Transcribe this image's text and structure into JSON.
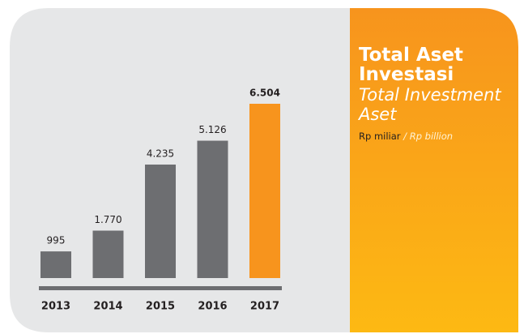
{
  "chart_data": {
    "type": "bar",
    "title": "Total Aset Investasi",
    "subtitle": "Total Investment Aset",
    "unit": "Rp miliar",
    "unit_separator": "/",
    "unit_en": "Rp billion",
    "categories": [
      "2013",
      "2014",
      "2015",
      "2016",
      "2017"
    ],
    "values": [
      995,
      1770,
      4235,
      5126,
      6504
    ],
    "value_labels": [
      "995",
      "1.770",
      "4.235",
      "5.126",
      "6.504"
    ],
    "colors": [
      "#6d6e71",
      "#6d6e71",
      "#6d6e71",
      "#6d6e71",
      "#f7941d"
    ]
  }
}
